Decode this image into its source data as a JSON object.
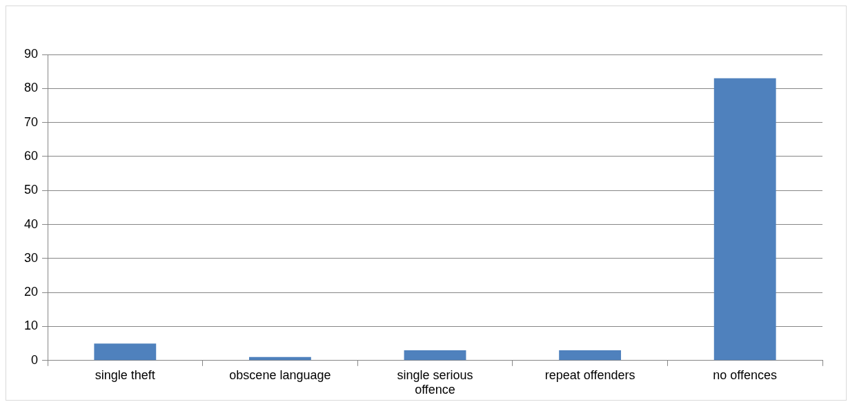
{
  "chart_data": {
    "type": "bar",
    "categories": [
      "single theft",
      "obscene language",
      "single serious offence",
      "repeat offenders",
      "no offences"
    ],
    "values": [
      5,
      1,
      3,
      3,
      83
    ],
    "color": "#4f81bd",
    "ylim": [
      0,
      90
    ],
    "yticks": [
      0,
      10,
      20,
      30,
      40,
      50,
      60,
      70,
      80,
      90
    ],
    "grid": "y",
    "legend": false
  }
}
